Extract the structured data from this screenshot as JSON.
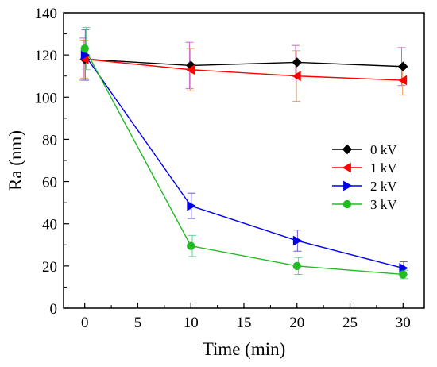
{
  "chart_data": {
    "type": "line",
    "xlabel": "Time (min)",
    "ylabel": "Ra (nm)",
    "xlim": [
      -2,
      32
    ],
    "ylim": [
      0,
      140
    ],
    "xticks": [
      0,
      5,
      10,
      15,
      20,
      25,
      30
    ],
    "yticks": [
      0,
      20,
      40,
      60,
      80,
      100,
      120,
      140
    ],
    "grid": false,
    "legend_position": "center-right",
    "series": [
      {
        "name": "0 kV",
        "color": "#000000",
        "marker": "diamond",
        "x": [
          0,
          10,
          20,
          30
        ],
        "y": [
          118,
          115,
          116.5,
          114.5
        ],
        "err": [
          10,
          11,
          8,
          9
        ],
        "err_color": "#cc66cc"
      },
      {
        "name": "1 kV",
        "color": "#ff0000",
        "marker": "triangle-left",
        "x": [
          0,
          10,
          20,
          30
        ],
        "y": [
          118,
          113,
          110,
          108
        ],
        "err": [
          9,
          10,
          12,
          7
        ],
        "err_color": "#f0a050"
      },
      {
        "name": "2 kV",
        "color": "#0000ee",
        "marker": "triangle-right",
        "x": [
          0,
          10,
          20,
          30
        ],
        "y": [
          120,
          48.5,
          32,
          19
        ],
        "err": [
          12,
          6,
          5,
          3
        ],
        "err_color": "#6a5acd"
      },
      {
        "name": "3 kV",
        "color": "#22bb22",
        "marker": "circle",
        "x": [
          0,
          10,
          20,
          30
        ],
        "y": [
          123,
          29.5,
          20,
          16
        ],
        "err": [
          10,
          5,
          4,
          2
        ],
        "err_color": "#66cc99"
      }
    ]
  }
}
